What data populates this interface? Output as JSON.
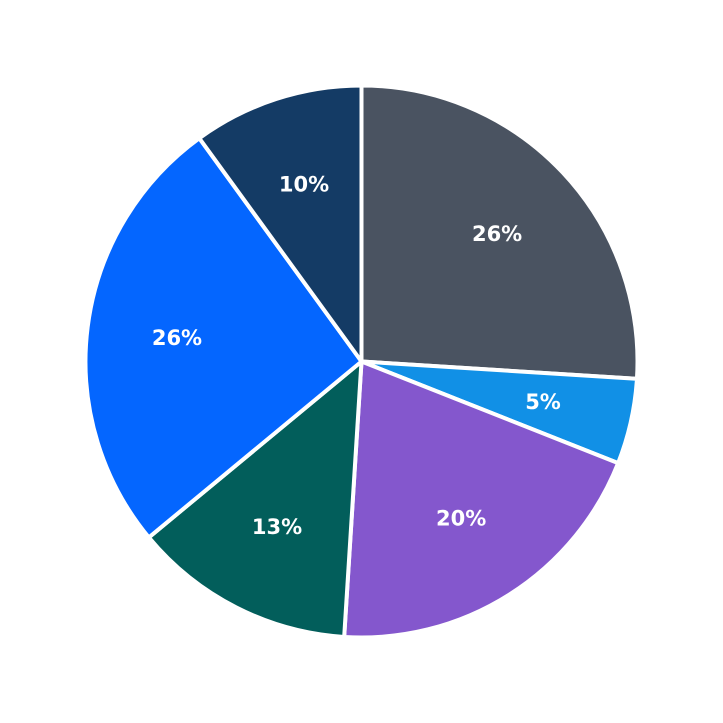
{
  "chart_data": {
    "type": "pie",
    "start_angle_deg": 90,
    "direction": "clockwise",
    "slices": [
      {
        "value": 26,
        "label": "26%",
        "color": "#4a5361"
      },
      {
        "value": 5,
        "label": "5%",
        "color": "#1190e6"
      },
      {
        "value": 20,
        "label": "20%",
        "color": "#8457cd"
      },
      {
        "value": 13,
        "label": "13%",
        "color": "#025e5b"
      },
      {
        "value": 26,
        "label": "26%",
        "color": "#0466ff"
      },
      {
        "value": 10,
        "label": "10%",
        "color": "#143b65"
      }
    ]
  }
}
